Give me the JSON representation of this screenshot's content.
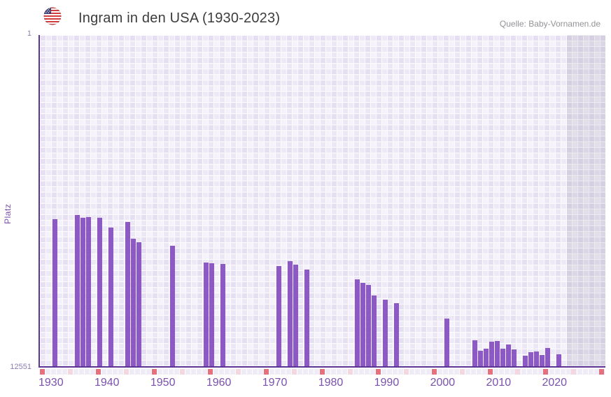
{
  "header": {
    "title": "Ingram in den USA (1930-2023)",
    "source": "Quelle: Baby-Vornamen.de",
    "flag_icon": "us-flag-icon"
  },
  "y_axis": {
    "label": "Platz",
    "top_tick": "1",
    "bottom_tick": "12551"
  },
  "chart_data": {
    "type": "bar",
    "title": "Ingram in den USA (1930-2023)",
    "xlabel": "",
    "ylabel": "Platz",
    "y_scale": "log",
    "y_min": 1,
    "y_max": 12551,
    "y_inverted": true,
    "x_start_year": 1930,
    "x_end_year": 2030,
    "data_end_year": 2023,
    "grid": true,
    "x_tick_labels": [
      "1930",
      "1940",
      "1950",
      "1960",
      "1970",
      "1980",
      "1990",
      "2000",
      "2010",
      "2020"
    ],
    "series": [
      {
        "name": "Platz",
        "points": [
          {
            "year": 1932,
            "rank": 190
          },
          {
            "year": 1936,
            "rank": 170
          },
          {
            "year": 1937,
            "rank": 181
          },
          {
            "year": 1938,
            "rank": 180
          },
          {
            "year": 1940,
            "rank": 184
          },
          {
            "year": 1942,
            "rank": 240
          },
          {
            "year": 1945,
            "rank": 206
          },
          {
            "year": 1946,
            "rank": 332
          },
          {
            "year": 1947,
            "rank": 369
          },
          {
            "year": 1953,
            "rank": 405
          },
          {
            "year": 1959,
            "rank": 652
          },
          {
            "year": 1960,
            "rank": 665
          },
          {
            "year": 1962,
            "rank": 683
          },
          {
            "year": 1972,
            "rank": 721
          },
          {
            "year": 1974,
            "rank": 627
          },
          {
            "year": 1975,
            "rank": 692
          },
          {
            "year": 1977,
            "rank": 807
          },
          {
            "year": 1986,
            "rank": 1047
          },
          {
            "year": 1987,
            "rank": 1163
          },
          {
            "year": 1988,
            "rank": 1242
          },
          {
            "year": 1989,
            "rank": 1674
          },
          {
            "year": 1991,
            "rank": 1886
          },
          {
            "year": 1993,
            "rank": 2084
          },
          {
            "year": 2002,
            "rank": 3230
          },
          {
            "year": 2007,
            "rank": 5990
          },
          {
            "year": 2008,
            "rank": 8020
          },
          {
            "year": 2009,
            "rank": 7660
          },
          {
            "year": 2010,
            "rank": 6280
          },
          {
            "year": 2011,
            "rank": 6110
          },
          {
            "year": 2012,
            "rank": 7560
          },
          {
            "year": 2013,
            "rank": 6740
          },
          {
            "year": 2014,
            "rank": 7830
          },
          {
            "year": 2016,
            "rank": 9230
          },
          {
            "year": 2017,
            "rank": 8410
          },
          {
            "year": 2018,
            "rank": 8240
          },
          {
            "year": 2019,
            "rank": 9100
          },
          {
            "year": 2020,
            "rank": 7510
          },
          {
            "year": 2022,
            "rank": 8920
          }
        ]
      }
    ]
  },
  "colors": {
    "bar": "#8d59c5",
    "axis": "#5b3496",
    "tick_text": "#7c51ae",
    "decade_marker": "#e5717f",
    "half_decade_marker": "#f4d8e1",
    "no_data_overlay": "rgba(108,104,126,0.13)",
    "title_text": "#3c3c3e",
    "source_text": "#949296"
  }
}
